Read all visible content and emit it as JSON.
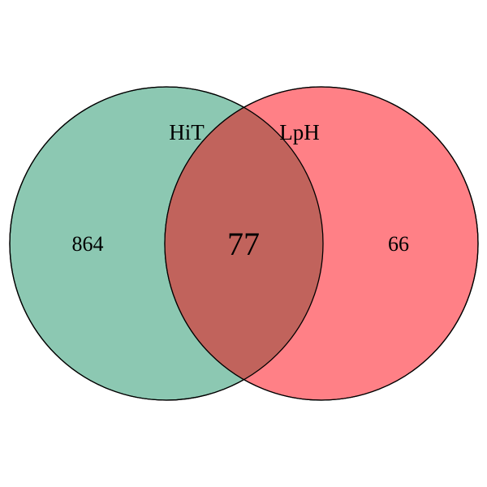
{
  "sets": [
    {
      "name": "HiT",
      "only_count": "864",
      "color": "#8cc8b2"
    },
    {
      "name": "LpH",
      "only_count": "66",
      "color": "#ff8086"
    }
  ],
  "intersection": {
    "count": "77",
    "color": "#c1635c"
  },
  "outline_color": "#000000"
}
